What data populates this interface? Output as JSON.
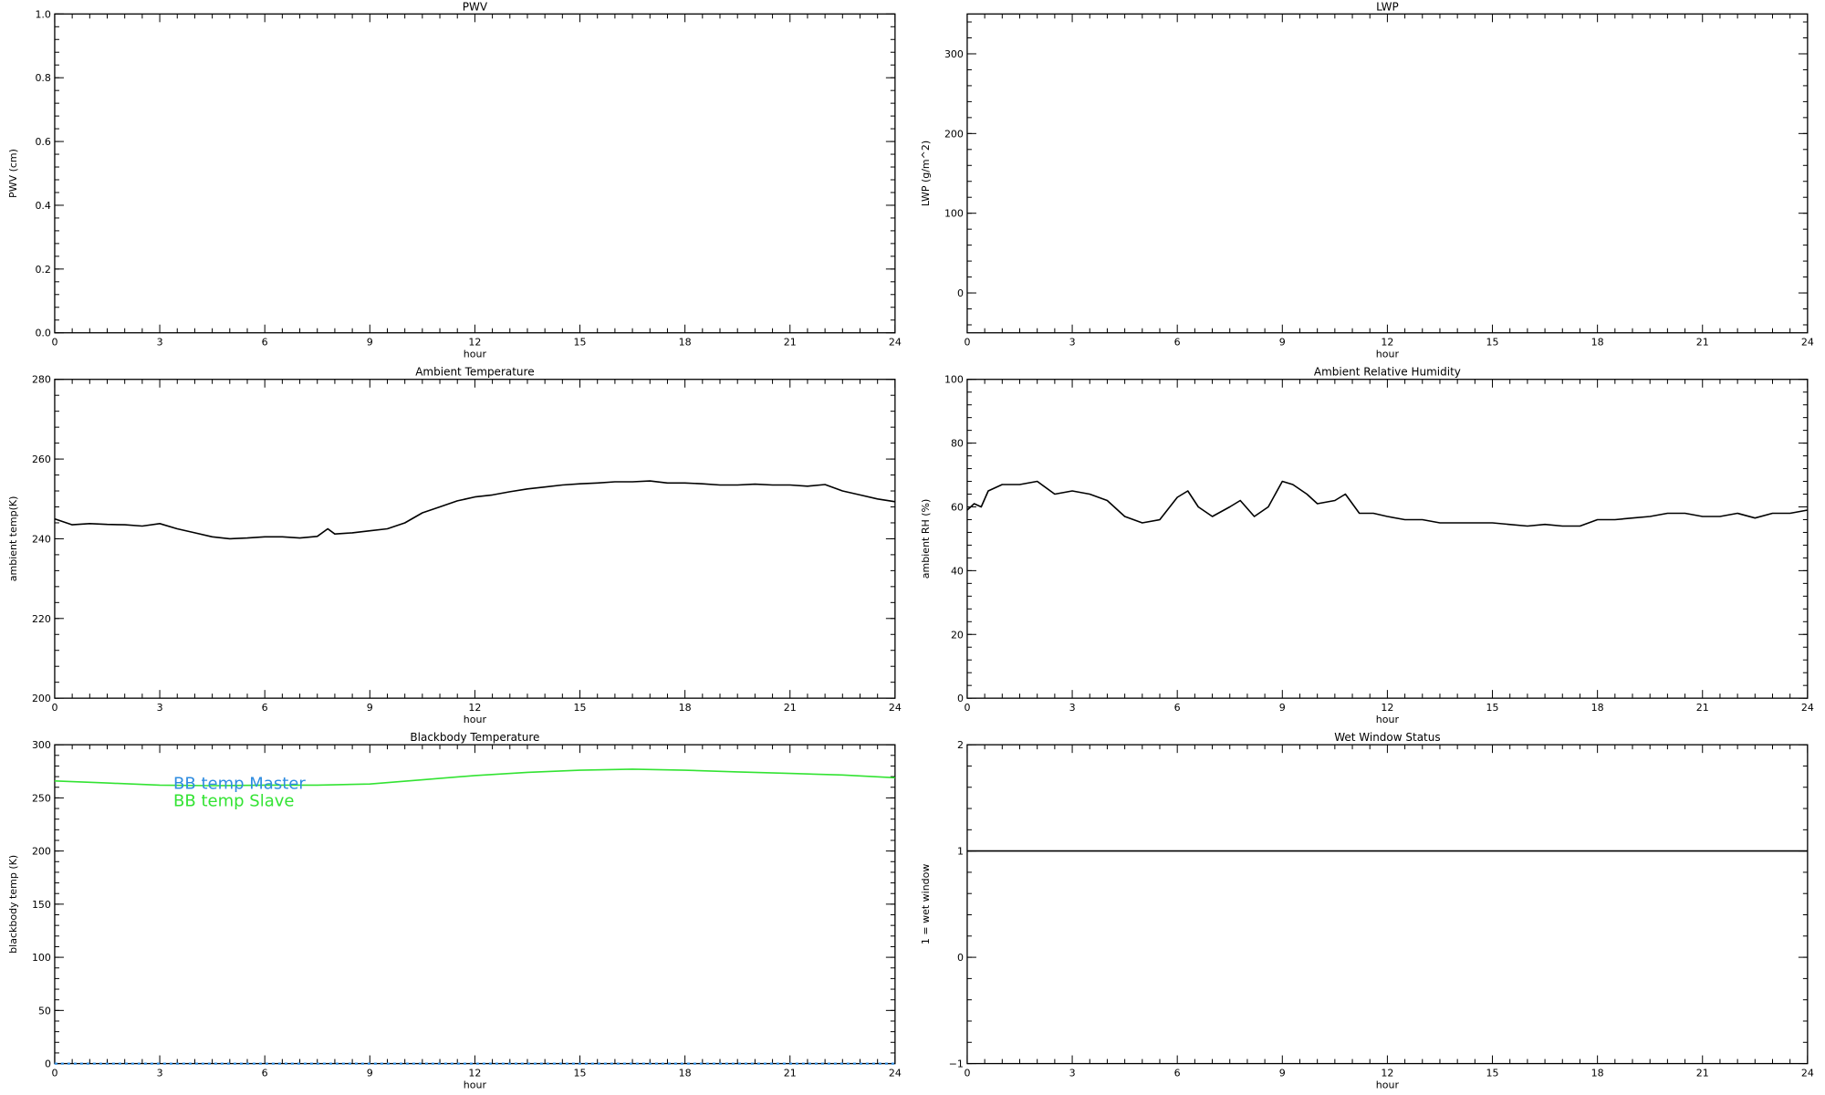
{
  "chart_data": [
    {
      "type": "line",
      "title": "PWV",
      "xlabel": "hour",
      "ylabel": "PWV (cm)",
      "xlim": [
        0,
        24
      ],
      "ylim": [
        0,
        1
      ],
      "xticks": [
        0,
        3,
        6,
        9,
        12,
        15,
        18,
        21,
        24
      ],
      "yticks": [
        0,
        0.2,
        0.4,
        0.6,
        0.8,
        1.0
      ],
      "ytick_labels": [
        "0.0",
        "0.2",
        "0.4",
        "0.6",
        "0.8",
        "1.0"
      ],
      "series": []
    },
    {
      "type": "line",
      "title": "LWP",
      "xlabel": "hour",
      "ylabel": "LWP (g/m^2)",
      "xlim": [
        0,
        24
      ],
      "ylim": [
        -50,
        350
      ],
      "xticks": [
        0,
        3,
        6,
        9,
        12,
        15,
        18,
        21,
        24
      ],
      "yticks": [
        0,
        100,
        200,
        300
      ],
      "ytick_labels": [
        "0",
        "100",
        "200",
        "300"
      ],
      "series": []
    },
    {
      "type": "line",
      "title": "Ambient Temperature",
      "xlabel": "hour",
      "ylabel": "ambient temp(K)",
      "xlim": [
        0,
        24
      ],
      "ylim": [
        200,
        280
      ],
      "xticks": [
        0,
        3,
        6,
        9,
        12,
        15,
        18,
        21,
        24
      ],
      "yticks": [
        200,
        220,
        240,
        260,
        280
      ],
      "ytick_labels": [
        "200",
        "220",
        "240",
        "260",
        "280"
      ],
      "series": [
        {
          "color": "#000000",
          "x": [
            0,
            0.5,
            1,
            1.5,
            2,
            2.5,
            3,
            3.5,
            4,
            4.5,
            5,
            5.5,
            6,
            6.5,
            7,
            7.5,
            7.8,
            8,
            8.5,
            9,
            9.5,
            10,
            10.5,
            11,
            11.5,
            12,
            12.5,
            13,
            13.5,
            14,
            14.5,
            15,
            15.5,
            16,
            16.5,
            17,
            17.5,
            18,
            18.5,
            19,
            19.5,
            20,
            20.5,
            21,
            21.5,
            22,
            22.5,
            23,
            23.5,
            24
          ],
          "y": [
            245,
            243.5,
            243.8,
            243.6,
            243.5,
            243.2,
            243.8,
            242.5,
            241.5,
            240.5,
            240,
            240.2,
            240.5,
            240.5,
            240.2,
            240.6,
            242.5,
            241.2,
            241.5,
            242,
            242.5,
            244,
            246.5,
            248,
            249.5,
            250.5,
            251,
            251.8,
            252.5,
            253,
            253.5,
            253.8,
            254,
            254.3,
            254.3,
            254.5,
            254,
            254,
            253.8,
            253.5,
            253.5,
            253.7,
            253.5,
            253.5,
            253.2,
            253.6,
            252,
            251,
            250,
            249.3
          ]
        }
      ]
    },
    {
      "type": "line",
      "title": "Ambient Relative Humidity",
      "xlabel": "hour",
      "ylabel": "ambient RH (%)",
      "xlim": [
        0,
        24
      ],
      "ylim": [
        0,
        100
      ],
      "xticks": [
        0,
        3,
        6,
        9,
        12,
        15,
        18,
        21,
        24
      ],
      "yticks": [
        0,
        20,
        40,
        60,
        80,
        100
      ],
      "ytick_labels": [
        "0",
        "20",
        "40",
        "60",
        "80",
        "100"
      ],
      "series": [
        {
          "color": "#000000",
          "x": [
            0,
            0.2,
            0.4,
            0.6,
            1,
            1.5,
            2,
            2.5,
            3,
            3.5,
            4,
            4.5,
            5,
            5.5,
            6,
            6.3,
            6.6,
            7,
            7.5,
            7.8,
            8.2,
            8.6,
            9,
            9.3,
            9.7,
            10,
            10.5,
            10.8,
            11.2,
            11.6,
            12,
            12.5,
            13,
            13.5,
            14,
            15,
            16,
            16.5,
            17,
            17.5,
            18,
            18.5,
            19,
            19.5,
            20,
            20.5,
            21,
            21.5,
            22,
            22.5,
            23,
            23.5,
            24
          ],
          "y": [
            59,
            61,
            60,
            65,
            67,
            67,
            68,
            64,
            65,
            64,
            62,
            57,
            55,
            56,
            63,
            65,
            60,
            57,
            60,
            62,
            57,
            60,
            68,
            67,
            64,
            61,
            62,
            64,
            58,
            58,
            57,
            56,
            56,
            55,
            55,
            55,
            54,
            54.5,
            54,
            54,
            56,
            56,
            56.5,
            57,
            58,
            58,
            57,
            57,
            58,
            56.5,
            58,
            58,
            59
          ]
        }
      ]
    },
    {
      "type": "line",
      "title": "Blackbody Temperature",
      "xlabel": "hour",
      "ylabel": "blackbody temp (K)",
      "xlim": [
        0,
        24
      ],
      "ylim": [
        0,
        300
      ],
      "xticks": [
        0,
        3,
        6,
        9,
        12,
        15,
        18,
        21,
        24
      ],
      "yticks": [
        0,
        50,
        100,
        150,
        200,
        250,
        300
      ],
      "ytick_labels": [
        "0",
        "50",
        "100",
        "150",
        "200",
        "250",
        "300"
      ],
      "series": [
        {
          "name": "BB temp Master",
          "color": "#2f8ce0",
          "x": [
            0,
            3,
            6,
            9,
            12,
            15,
            18,
            21,
            24
          ],
          "y": [
            0,
            0,
            0,
            0,
            0,
            0,
            0,
            0,
            0
          ]
        },
        {
          "name": "BB temp Slave",
          "color": "#33e333",
          "x": [
            0,
            1.5,
            3,
            4.5,
            6,
            7.5,
            9,
            10.5,
            12,
            13.5,
            15,
            16.5,
            18,
            19.5,
            21,
            22.5,
            24
          ],
          "y": [
            266,
            264,
            262,
            261.5,
            262,
            262,
            263,
            267,
            271,
            274,
            276,
            277,
            276,
            274.5,
            273,
            271.5,
            269
          ]
        }
      ]
    },
    {
      "type": "line",
      "title": "Wet Window Status",
      "xlabel": "hour",
      "ylabel": "1 = wet window",
      "xlim": [
        0,
        24
      ],
      "ylim": [
        -1,
        2
      ],
      "xticks": [
        0,
        3,
        6,
        9,
        12,
        15,
        18,
        21,
        24
      ],
      "yticks": [
        -1,
        0,
        1,
        2
      ],
      "ytick_labels": [
        "−1",
        "0",
        "1",
        "2"
      ],
      "series": [
        {
          "color": "#000000",
          "x": [
            0,
            24
          ],
          "y": [
            1,
            1
          ]
        }
      ]
    }
  ]
}
